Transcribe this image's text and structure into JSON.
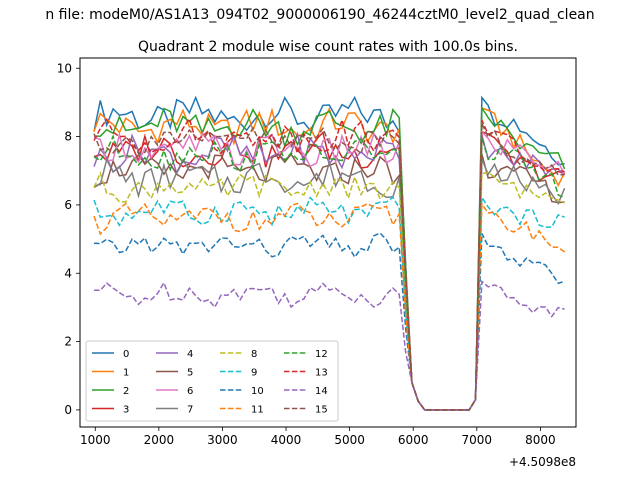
{
  "suptitle": "n file: modeM0/AS1A13_094T02_9000006190_46244cztM0_level2_quad_clean",
  "chart_data": {
    "type": "line",
    "title": "Quadrant 2 module wise count rates with 100.0s bins.",
    "xlabel": "",
    "ylabel": "",
    "offset_text": "+4.5098e8",
    "xlim": [
      760,
      8560
    ],
    "ylim": [
      -0.5,
      10.3
    ],
    "xticks": [
      1000,
      2000,
      3000,
      4000,
      5000,
      6000,
      7000,
      8000
    ],
    "yticks": [
      0,
      2,
      4,
      6,
      8,
      10
    ],
    "grid": false,
    "legend": {
      "placement": "lower-left",
      "columns": 4
    },
    "x_grid": {
      "start": 980,
      "end": 8380,
      "step": 100
    },
    "gap": {
      "start_index": 50,
      "end_index": 60
    },
    "series": [
      {
        "name": "0",
        "color": "#1f77b4",
        "style": "solid",
        "base": 8.6,
        "amp": 0.45,
        "tail_end": 7.2,
        "phase": 0
      },
      {
        "name": "1",
        "color": "#ff7f0e",
        "style": "solid",
        "base": 8.3,
        "amp": 0.45,
        "tail_end": 6.5,
        "phase": 1
      },
      {
        "name": "2",
        "color": "#2ca02c",
        "style": "solid",
        "base": 8.3,
        "amp": 0.45,
        "tail_end": 6.8,
        "phase": 2
      },
      {
        "name": "3",
        "color": "#d62728",
        "style": "solid",
        "base": 7.6,
        "amp": 0.45,
        "tail_end": 6.3,
        "phase": 3
      },
      {
        "name": "4",
        "color": "#9467bd",
        "style": "solid",
        "base": 7.5,
        "amp": 0.45,
        "tail_end": 6.5,
        "phase": 4
      },
      {
        "name": "5",
        "color": "#8c564b",
        "style": "solid",
        "base": 7.0,
        "amp": 0.4,
        "tail_end": 6.0,
        "phase": 5
      },
      {
        "name": "6",
        "color": "#e377c2",
        "style": "solid",
        "base": 7.6,
        "amp": 0.45,
        "tail_end": 6.8,
        "phase": 6
      },
      {
        "name": "7",
        "color": "#7f7f7f",
        "style": "solid",
        "base": 6.8,
        "amp": 0.45,
        "tail_end": 6.0,
        "phase": 7
      },
      {
        "name": "8",
        "color": "#bcbd22",
        "style": "dashed",
        "base": 6.5,
        "amp": 0.35,
        "tail_end": 6.0,
        "phase": 8
      },
      {
        "name": "9",
        "color": "#17becf",
        "style": "dashed",
        "base": 5.8,
        "amp": 0.35,
        "tail_end": 5.2,
        "phase": 9
      },
      {
        "name": "10",
        "color": "#1f77b4",
        "style": "dashed",
        "base": 4.8,
        "amp": 0.3,
        "tail_end": 3.5,
        "phase": 10
      },
      {
        "name": "11",
        "color": "#ff7f0e",
        "style": "dashed",
        "base": 5.6,
        "amp": 0.35,
        "tail_end": 4.5,
        "phase": 11
      },
      {
        "name": "12",
        "color": "#2ca02c",
        "style": "dashed",
        "base": 7.5,
        "amp": 0.4,
        "tail_end": 6.3,
        "phase": 12
      },
      {
        "name": "13",
        "color": "#d62728",
        "style": "dashed",
        "base": 8.0,
        "amp": 0.4,
        "tail_end": 6.5,
        "phase": 13
      },
      {
        "name": "14",
        "color": "#9467bd",
        "style": "dashed",
        "base": 3.4,
        "amp": 0.3,
        "tail_end": 2.6,
        "phase": 14
      },
      {
        "name": "15",
        "color": "#8c564b",
        "style": "dashed",
        "base": 7.9,
        "amp": 0.4,
        "tail_end": 6.5,
        "phase": 15
      }
    ]
  }
}
